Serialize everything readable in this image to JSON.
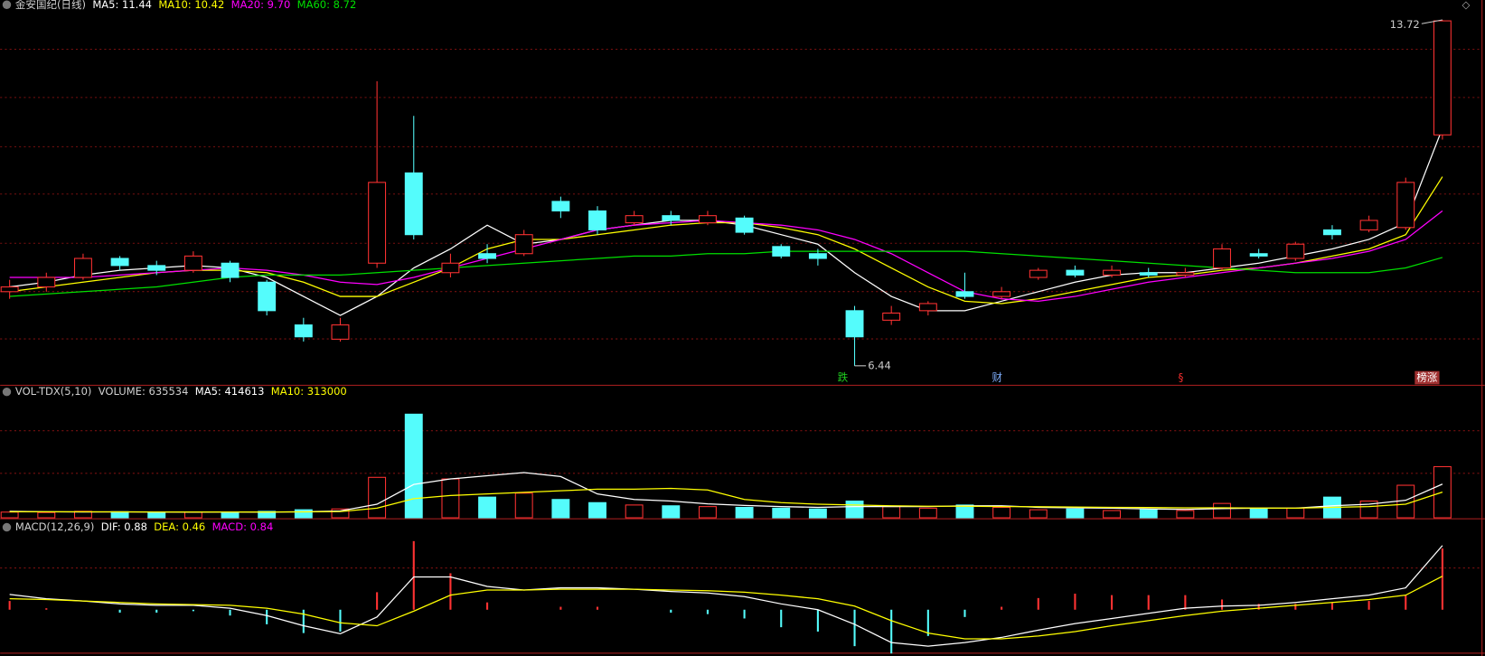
{
  "chart_data": [
    {
      "type": "candlestick",
      "title": "金安国纪(日线)",
      "up_color": "#ff3232",
      "down_color": "#54fcfc",
      "ylim": [
        6.07,
        13.86
      ],
      "candles": {
        "open": [
          8.0,
          8.1,
          8.3,
          8.7,
          8.55,
          8.45,
          8.6,
          8.2,
          7.3,
          7.0,
          8.6,
          10.5,
          8.4,
          8.8,
          8.8,
          9.9,
          9.7,
          9.45,
          9.6,
          9.45,
          9.55,
          8.95,
          8.8,
          7.6,
          7.4,
          7.6,
          8.0,
          7.9,
          8.3,
          8.45,
          8.35,
          8.4,
          8.35,
          8.5,
          8.8,
          8.7,
          9.3,
          9.3,
          9.35,
          11.3
        ],
        "high": [
          8.25,
          8.4,
          8.8,
          8.75,
          8.65,
          8.85,
          8.65,
          8.25,
          7.45,
          7.45,
          12.43,
          11.7,
          8.8,
          9.0,
          9.3,
          10.0,
          9.8,
          9.7,
          9.7,
          9.7,
          9.6,
          9.0,
          8.9,
          7.7,
          7.7,
          7.8,
          8.4,
          8.1,
          8.5,
          8.55,
          8.55,
          8.5,
          8.5,
          9.0,
          8.9,
          9.05,
          9.4,
          9.6,
          10.4,
          13.72
        ],
        "low": [
          7.85,
          8.0,
          8.25,
          8.45,
          8.35,
          8.4,
          8.2,
          7.5,
          6.95,
          6.95,
          8.5,
          9.1,
          8.3,
          8.6,
          8.75,
          9.55,
          9.2,
          9.4,
          9.4,
          9.4,
          9.2,
          8.7,
          8.55,
          6.44,
          7.3,
          7.5,
          7.85,
          7.85,
          8.25,
          8.3,
          8.3,
          8.3,
          8.3,
          8.45,
          8.7,
          8.65,
          9.1,
          9.25,
          9.3,
          11.2
        ],
        "close": [
          8.1,
          8.3,
          8.7,
          8.55,
          8.45,
          8.75,
          8.3,
          7.6,
          7.05,
          7.3,
          10.3,
          9.2,
          8.6,
          8.7,
          9.2,
          9.7,
          9.3,
          9.6,
          9.5,
          9.6,
          9.25,
          8.75,
          8.7,
          7.05,
          7.55,
          7.75,
          7.9,
          8.0,
          8.45,
          8.35,
          8.45,
          8.35,
          8.4,
          8.9,
          8.75,
          9.0,
          9.2,
          9.5,
          10.3,
          13.7
        ]
      },
      "series": [
        {
          "name": "MA5: 11.44",
          "color": "#ffffff",
          "values": [
            8.1,
            8.2,
            8.35,
            8.45,
            8.5,
            8.55,
            8.5,
            8.3,
            7.9,
            7.5,
            7.9,
            8.5,
            8.9,
            9.4,
            9.0,
            9.1,
            9.3,
            9.4,
            9.5,
            9.5,
            9.4,
            9.2,
            9.0,
            8.4,
            7.9,
            7.6,
            7.6,
            7.8,
            8.0,
            8.2,
            8.35,
            8.4,
            8.4,
            8.5,
            8.6,
            8.75,
            8.9,
            9.1,
            9.45,
            11.44
          ]
        },
        {
          "name": "MA10: 10.42",
          "color": "#ffff00",
          "values": [
            8.0,
            8.1,
            8.2,
            8.3,
            8.4,
            8.45,
            8.45,
            8.4,
            8.2,
            7.9,
            7.9,
            8.2,
            8.5,
            8.9,
            9.1,
            9.1,
            9.2,
            9.3,
            9.4,
            9.45,
            9.45,
            9.35,
            9.2,
            8.9,
            8.5,
            8.1,
            7.8,
            7.75,
            7.85,
            8.0,
            8.15,
            8.3,
            8.35,
            8.45,
            8.5,
            8.6,
            8.75,
            8.9,
            9.2,
            10.42
          ]
        },
        {
          "name": "MA20: 9.70",
          "color": "#ff00ff",
          "values": [
            8.3,
            8.3,
            8.3,
            8.35,
            8.4,
            8.45,
            8.5,
            8.45,
            8.35,
            8.2,
            8.15,
            8.3,
            8.5,
            8.7,
            8.9,
            9.1,
            9.3,
            9.4,
            9.45,
            9.5,
            9.45,
            9.4,
            9.3,
            9.1,
            8.8,
            8.4,
            8.0,
            7.85,
            7.8,
            7.9,
            8.05,
            8.2,
            8.3,
            8.4,
            8.5,
            8.6,
            8.7,
            8.85,
            9.1,
            9.7
          ]
        },
        {
          "name": "MA60: 8.72",
          "color": "#00e000",
          "values": [
            7.9,
            7.95,
            8.0,
            8.05,
            8.1,
            8.2,
            8.3,
            8.35,
            8.35,
            8.35,
            8.4,
            8.45,
            8.5,
            8.55,
            8.6,
            8.65,
            8.7,
            8.75,
            8.75,
            8.8,
            8.8,
            8.85,
            8.85,
            8.85,
            8.85,
            8.85,
            8.85,
            8.8,
            8.75,
            8.7,
            8.65,
            8.6,
            8.55,
            8.5,
            8.45,
            8.4,
            8.4,
            8.4,
            8.5,
            8.72
          ]
        }
      ],
      "markers": [
        {
          "text": "跌",
          "color": "#20d020"
        },
        {
          "text": "财",
          "color": "#80b0ff"
        },
        {
          "text": "§",
          "color": "#ff3030"
        },
        {
          "text": "榜涨",
          "color": "#ffffff"
        }
      ]
    },
    {
      "type": "volume",
      "title": "VOL-TDX(5,10)",
      "ylim": [
        0,
        1486000
      ],
      "series": [
        {
          "name": "VOLUME: 635534",
          "values": [
            60000,
            55000,
            70000,
            65000,
            55000,
            60000,
            50000,
            70000,
            90000,
            100000,
            500000,
            1300000,
            480000,
            250000,
            300000,
            220000,
            180000,
            150000,
            140000,
            130000,
            120000,
            110000,
            100000,
            200000,
            130000,
            110000,
            150000,
            120000,
            90000,
            100000,
            80000,
            90000,
            80000,
            170000,
            100000,
            110000,
            250000,
            200000,
            400000,
            635534
          ]
        },
        {
          "name": "MA5: 414613",
          "color": "#ffffff",
          "values": [
            70000,
            65000,
            62000,
            63000,
            61000,
            60000,
            62000,
            60000,
            65000,
            75000,
            160000,
            410000,
            480000,
            520000,
            560000,
            510000,
            290000,
            220000,
            200000,
            165000,
            145000,
            130000,
            120000,
            130000,
            130000,
            130000,
            140000,
            140000,
            120000,
            115000,
            110000,
            100000,
            95000,
            105000,
            110000,
            110000,
            140000,
            160000,
            210000,
            414613
          ]
        },
        {
          "name": "MA10: 313000",
          "color": "#ffff00",
          "values": [
            65000,
            65000,
            64000,
            63000,
            62000,
            62000,
            62000,
            62000,
            63000,
            67000,
            110000,
            230000,
            270000,
            290000,
            310000,
            330000,
            350000,
            350000,
            360000,
            340000,
            220000,
            180000,
            160000,
            150000,
            140000,
            135000,
            135000,
            130000,
            128000,
            125000,
            120000,
            118000,
            115000,
            115000,
            112000,
            110000,
            120000,
            130000,
            160000,
            313000
          ]
        }
      ]
    },
    {
      "type": "macd",
      "title": "MACD(12,26,9)",
      "ylim": [
        -0.57,
        1.04
      ],
      "series": [
        {
          "name": "DIF: 0.88",
          "color": "#ffffff",
          "values": [
            0.21,
            0.15,
            0.12,
            0.08,
            0.06,
            0.06,
            0.02,
            -0.08,
            -0.22,
            -0.33,
            -0.1,
            0.45,
            0.45,
            0.32,
            0.27,
            0.3,
            0.3,
            0.28,
            0.25,
            0.23,
            0.18,
            0.08,
            0.0,
            -0.2,
            -0.45,
            -0.5,
            -0.45,
            -0.38,
            -0.28,
            -0.19,
            -0.12,
            -0.05,
            0.02,
            0.05,
            0.06,
            0.1,
            0.15,
            0.2,
            0.3,
            0.88
          ]
        },
        {
          "name": "DEA: 0.46",
          "color": "#ffff00",
          "values": [
            0.15,
            0.14,
            0.12,
            0.1,
            0.08,
            0.07,
            0.06,
            0.02,
            -0.06,
            -0.18,
            -0.22,
            -0.02,
            0.2,
            0.27,
            0.27,
            0.28,
            0.28,
            0.28,
            0.27,
            0.26,
            0.24,
            0.2,
            0.15,
            0.05,
            -0.15,
            -0.32,
            -0.4,
            -0.4,
            -0.36,
            -0.3,
            -0.22,
            -0.15,
            -0.08,
            -0.02,
            0.02,
            0.06,
            0.1,
            0.14,
            0.2,
            0.46
          ]
        },
        {
          "name": "MACD: 0.84",
          "color": "#ff00ff",
          "values": [
            0.12,
            0.02,
            0,
            -0.04,
            -0.04,
            -0.02,
            -0.08,
            -0.2,
            -0.32,
            -0.3,
            0.24,
            0.94,
            0.5,
            0.1,
            0,
            0.04,
            0.04,
            0,
            -0.04,
            -0.06,
            -0.12,
            -0.24,
            -0.3,
            -0.5,
            -0.6,
            -0.36,
            -0.1,
            0.04,
            0.16,
            0.22,
            0.2,
            0.2,
            0.2,
            0.14,
            0.08,
            0.08,
            0.1,
            0.12,
            0.2,
            0.84
          ]
        }
      ]
    }
  ]
}
